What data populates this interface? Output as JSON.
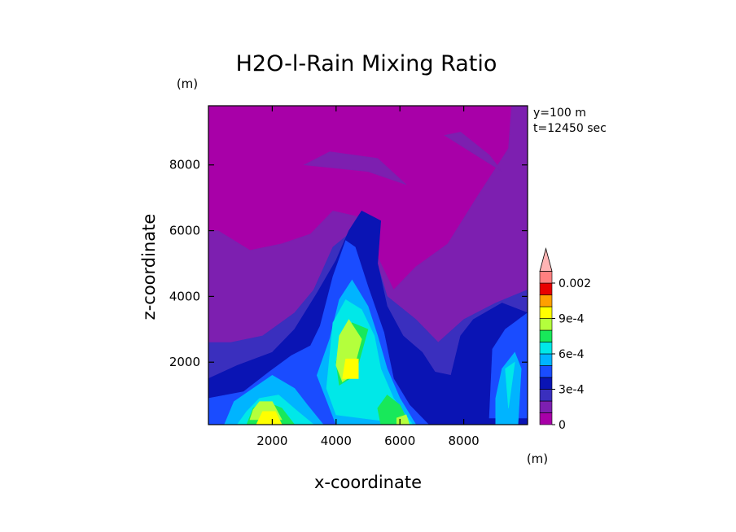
{
  "chart_data": {
    "type": "heatmap",
    "title": "H2O-l-Rain Mixing Ratio",
    "xlabel": "x-coordinate",
    "ylabel": "z-coordinate",
    "x_unit": "(m)",
    "y_unit": "(m)",
    "annotations": [
      "y=100 m",
      "t=12450 sec"
    ],
    "xlim": [
      0,
      10000
    ],
    "ylim": [
      100,
      9800
    ],
    "x_ticks": [
      2000,
      4000,
      6000,
      8000
    ],
    "y_ticks": [
      2000,
      4000,
      6000,
      8000
    ],
    "x_tick_labels": [
      "2000",
      "4000",
      "6000",
      "8000"
    ],
    "y_tick_labels": [
      "2000",
      "4000",
      "6000",
      "8000"
    ],
    "grid": false,
    "colorbar": {
      "levels": [
        0,
        0.0001,
        0.0002,
        0.0003,
        0.0004,
        0.0005,
        0.0006,
        0.0007,
        0.0008,
        0.0009,
        0.001,
        0.0015,
        0.002
      ],
      "colors": [
        "#a800a8",
        "#7d1fb0",
        "#3a2fbe",
        "#0a14b4",
        "#1a4cff",
        "#00b4ff",
        "#00e8e8",
        "#18e85a",
        "#b4ff3c",
        "#ffff00",
        "#ffa000",
        "#e80000",
        "#ff8080",
        "#ffb4b4"
      ],
      "tick_labels": [
        {
          "value": 0,
          "label": "0"
        },
        {
          "value": 0.0003,
          "label": "3e-4"
        },
        {
          "value": 0.0006,
          "label": "6e-4"
        },
        {
          "value": 0.0009,
          "label": "9e-4"
        },
        {
          "value": 0.002,
          "label": "0.002"
        }
      ],
      "extend": "max"
    },
    "contour_regions": [
      {
        "level": 1,
        "polygon": [
          [
            0,
            100
          ],
          [
            10000,
            100
          ],
          [
            10000,
            9800
          ],
          [
            9500,
            9800
          ],
          [
            9400,
            8500
          ],
          [
            8400,
            7000
          ],
          [
            7500,
            5600
          ],
          [
            6500,
            4900
          ],
          [
            5800,
            4200
          ],
          [
            5300,
            5200
          ],
          [
            4800,
            6400
          ],
          [
            3900,
            6600
          ],
          [
            3200,
            5900
          ],
          [
            2300,
            5600
          ],
          [
            1300,
            5400
          ],
          [
            300,
            6000
          ],
          [
            0,
            6000
          ]
        ]
      },
      {
        "level": 1,
        "polygon": [
          [
            3000,
            8000
          ],
          [
            5000,
            7800
          ],
          [
            6200,
            7400
          ],
          [
            5300,
            8200
          ],
          [
            3800,
            8400
          ]
        ]
      },
      {
        "level": 1,
        "polygon": [
          [
            7400,
            8900
          ],
          [
            9200,
            7800
          ],
          [
            8800,
            8300
          ],
          [
            7900,
            9000
          ]
        ]
      },
      {
        "level": 2,
        "polygon": [
          [
            0,
            100
          ],
          [
            10000,
            100
          ],
          [
            10000,
            4200
          ],
          [
            9000,
            3800
          ],
          [
            8000,
            3300
          ],
          [
            7200,
            2600
          ],
          [
            6500,
            3300
          ],
          [
            5600,
            4000
          ],
          [
            5200,
            5300
          ],
          [
            4400,
            5900
          ],
          [
            3900,
            5500
          ],
          [
            3300,
            4200
          ],
          [
            2700,
            3500
          ],
          [
            1700,
            2800
          ],
          [
            700,
            2600
          ],
          [
            0,
            2600
          ]
        ]
      },
      {
        "level": 3,
        "polygon": [
          [
            0,
            100
          ],
          [
            10000,
            100
          ],
          [
            10000,
            3500
          ],
          [
            9200,
            3800
          ],
          [
            8300,
            3300
          ],
          [
            7900,
            2800
          ],
          [
            7600,
            1600
          ],
          [
            7100,
            1700
          ],
          [
            6700,
            2300
          ],
          [
            6100,
            2800
          ],
          [
            5600,
            3700
          ],
          [
            5300,
            5000
          ],
          [
            5400,
            6300
          ],
          [
            4800,
            6600
          ],
          [
            4400,
            6000
          ],
          [
            4000,
            5100
          ],
          [
            3400,
            4100
          ],
          [
            2700,
            3000
          ],
          [
            2000,
            2300
          ],
          [
            900,
            1900
          ],
          [
            0,
            1500
          ]
        ]
      },
      {
        "level": 4,
        "polygon": [
          [
            0,
            100
          ],
          [
            6900,
            100
          ],
          [
            6300,
            700
          ],
          [
            5800,
            1500
          ],
          [
            5500,
            2900
          ],
          [
            5000,
            4300
          ],
          [
            4600,
            5500
          ],
          [
            4300,
            5700
          ],
          [
            3900,
            4600
          ],
          [
            3500,
            3100
          ],
          [
            3200,
            2500
          ],
          [
            2600,
            2200
          ],
          [
            1900,
            1700
          ],
          [
            1100,
            1100
          ],
          [
            0,
            900
          ]
        ]
      },
      {
        "level": 4,
        "polygon": [
          [
            8800,
            300
          ],
          [
            10000,
            300
          ],
          [
            10000,
            3500
          ],
          [
            9300,
            3000
          ],
          [
            8900,
            2400
          ]
        ]
      },
      {
        "level": 5,
        "polygon": [
          [
            500,
            100
          ],
          [
            3600,
            100
          ],
          [
            3100,
            700
          ],
          [
            2700,
            1200
          ],
          [
            2000,
            1600
          ],
          [
            1400,
            1200
          ],
          [
            800,
            800
          ]
        ]
      },
      {
        "level": 5,
        "polygon": [
          [
            4000,
            100
          ],
          [
            6500,
            100
          ],
          [
            6000,
            900
          ],
          [
            5600,
            1800
          ],
          [
            5300,
            2800
          ],
          [
            5000,
            3700
          ],
          [
            4500,
            4500
          ],
          [
            4100,
            3900
          ],
          [
            3800,
            2700
          ],
          [
            3400,
            1600
          ]
        ]
      },
      {
        "level": 5,
        "polygon": [
          [
            9000,
            100
          ],
          [
            9700,
            100
          ],
          [
            9800,
            1800
          ],
          [
            9600,
            2300
          ],
          [
            9200,
            1800
          ],
          [
            9000,
            900
          ]
        ]
      },
      {
        "level": 6,
        "polygon": [
          [
            900,
            100
          ],
          [
            3300,
            100
          ],
          [
            2800,
            500
          ],
          [
            2200,
            1000
          ],
          [
            1600,
            900
          ],
          [
            1200,
            500
          ]
        ]
      },
      {
        "level": 6,
        "polygon": [
          [
            4000,
            400
          ],
          [
            6400,
            100
          ],
          [
            5800,
            900
          ],
          [
            5400,
            1800
          ],
          [
            5200,
            2800
          ],
          [
            4800,
            3600
          ],
          [
            4300,
            3900
          ],
          [
            3900,
            3200
          ],
          [
            3800,
            2200
          ],
          [
            3700,
            1200
          ]
        ]
      },
      {
        "level": 6,
        "polygon": [
          [
            9400,
            600
          ],
          [
            9600,
            2000
          ],
          [
            9300,
            1800
          ]
        ]
      },
      {
        "level": 7,
        "polygon": [
          [
            1200,
            100
          ],
          [
            2700,
            100
          ],
          [
            2300,
            600
          ],
          [
            1800,
            800
          ],
          [
            1400,
            600
          ]
        ]
      },
      {
        "level": 7,
        "polygon": [
          [
            4100,
            1300
          ],
          [
            4600,
            1600
          ],
          [
            5000,
            3000
          ],
          [
            4500,
            3200
          ],
          [
            4200,
            2800
          ],
          [
            4000,
            2000
          ]
        ]
      },
      {
        "level": 7,
        "polygon": [
          [
            5400,
            100
          ],
          [
            6300,
            100
          ],
          [
            6000,
            700
          ],
          [
            5600,
            1000
          ],
          [
            5300,
            600
          ]
        ]
      },
      {
        "level": 8,
        "polygon": [
          [
            1300,
            250
          ],
          [
            2300,
            250
          ],
          [
            2000,
            800
          ],
          [
            1600,
            800
          ],
          [
            1400,
            550
          ]
        ]
      },
      {
        "level": 8,
        "polygon": [
          [
            4200,
            1400
          ],
          [
            4500,
            1600
          ],
          [
            4800,
            2700
          ],
          [
            4400,
            3300
          ],
          [
            4100,
            2800
          ],
          [
            4000,
            1900
          ]
        ]
      },
      {
        "level": 8,
        "polygon": [
          [
            5900,
            100
          ],
          [
            6300,
            100
          ],
          [
            6200,
            400
          ],
          [
            5900,
            300
          ]
        ]
      },
      {
        "level": 9,
        "polygon": [
          [
            1500,
            100
          ],
          [
            2300,
            100
          ],
          [
            2100,
            500
          ],
          [
            1700,
            500
          ]
        ]
      },
      {
        "level": 9,
        "polygon": [
          [
            4200,
            1500
          ],
          [
            4700,
            1500
          ],
          [
            4700,
            2100
          ],
          [
            4300,
            2100
          ]
        ]
      }
    ]
  }
}
